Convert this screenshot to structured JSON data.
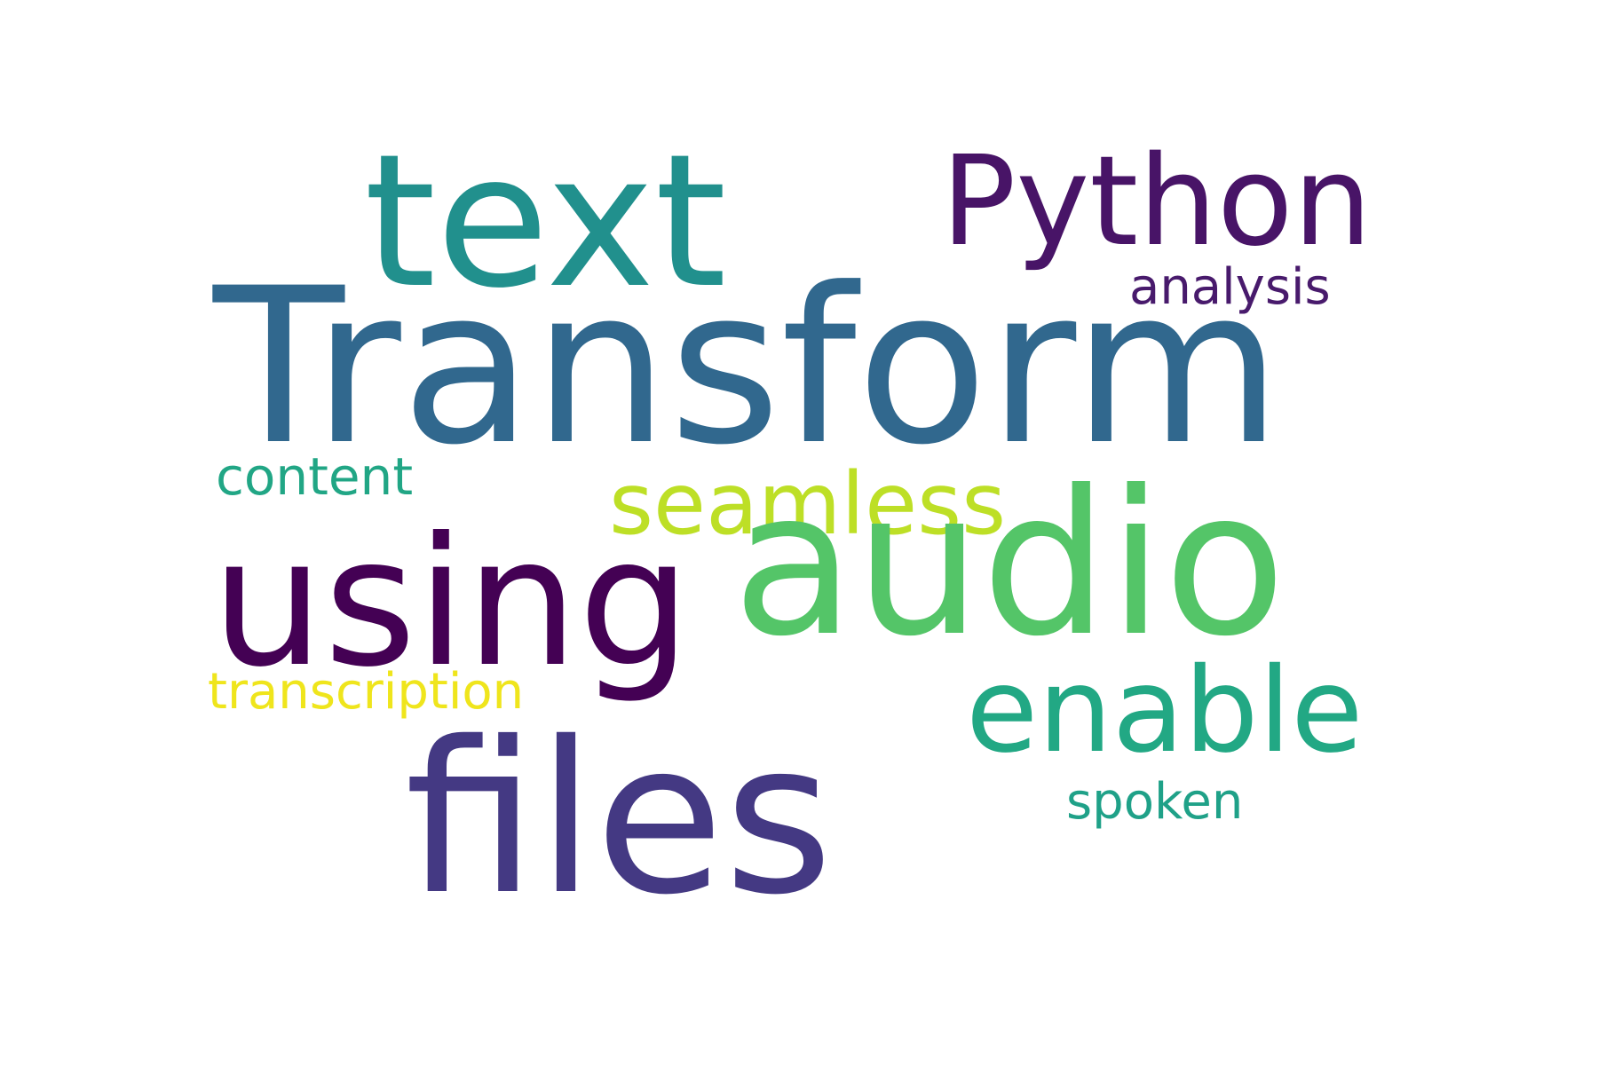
{
  "wordcloud": {
    "background_color": "#ffffff",
    "words": {
      "transform": {
        "text": "Transform",
        "color": "#31688e"
      },
      "text": {
        "text": "text",
        "color": "#21908d"
      },
      "audio": {
        "text": "audio",
        "color": "#54c568"
      },
      "files": {
        "text": "files",
        "color": "#443983"
      },
      "using": {
        "text": "using",
        "color": "#440154"
      },
      "python": {
        "text": "Python",
        "color": "#481467"
      },
      "enable": {
        "text": "enable",
        "color": "#22a884"
      },
      "seamless": {
        "text": "seamless",
        "color": "#bddf26"
      },
      "content": {
        "text": "content",
        "color": "#21a685"
      },
      "analysis": {
        "text": "analysis",
        "color": "#481a6c"
      },
      "spoken": {
        "text": "spoken",
        "color": "#1fa188"
      },
      "transcription": {
        "text": "transcription",
        "color": "#efe51c"
      }
    }
  }
}
